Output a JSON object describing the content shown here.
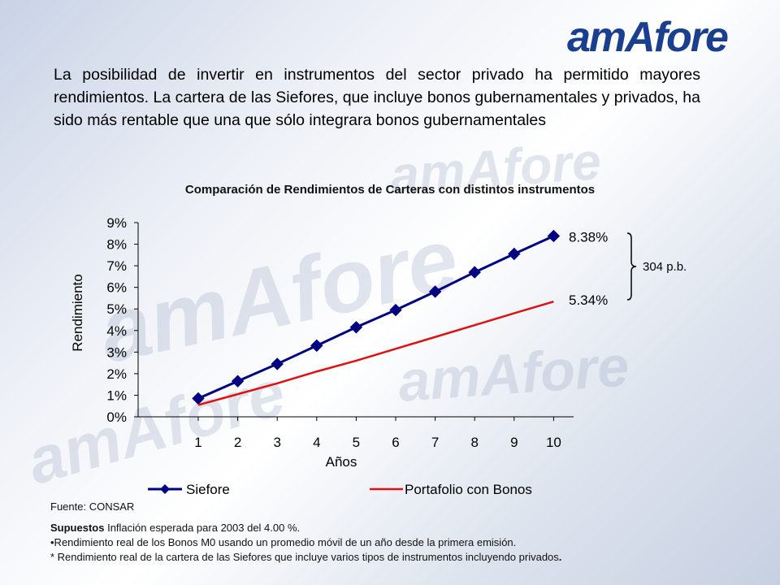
{
  "logo": {
    "text": "amAfore"
  },
  "intro_text": "La posibilidad de invertir en instrumentos del sector privado ha permitido mayores rendimientos. La cartera de las Siefores, que incluye bonos gubernamentales y privados, ha sido más rentable que una que sólo integrara bonos gubernamentales",
  "chart_data": {
    "type": "line",
    "title": "Comparación de Rendimientos de Carteras con distintos instrumentos",
    "xlabel": "Años",
    "ylabel": "Rendimiento",
    "x": [
      1,
      2,
      3,
      4,
      5,
      6,
      7,
      8,
      9,
      10
    ],
    "ylim": [
      0,
      9
    ],
    "yticks": [
      "0%",
      "1%",
      "2%",
      "3%",
      "4%",
      "5%",
      "6%",
      "7%",
      "8%",
      "9%"
    ],
    "series": [
      {
        "name": "Siefore",
        "color": "#000080",
        "marker": "diamond",
        "values": [
          0.85,
          1.65,
          2.45,
          3.3,
          4.15,
          4.95,
          5.8,
          6.7,
          7.55,
          8.38
        ]
      },
      {
        "name": "Portafolio con Bonos",
        "color": "#dd1111",
        "marker": "none",
        "values": [
          0.55,
          1.05,
          1.55,
          2.1,
          2.6,
          3.15,
          3.7,
          4.25,
          4.8,
          5.34
        ]
      }
    ],
    "annotations": {
      "siefore_end": "8.38%",
      "bonos_end": "5.34%",
      "spread": "304 p.b."
    },
    "legend_position": "bottom",
    "grid": false
  },
  "source": "Fuente:  CONSAR",
  "notes": {
    "supuestos_label": "Supuestos",
    "supuestos_text": " Inflación esperada para 2003 del 4.00 %.",
    "line2": "•Rendimiento real de los Bonos M0 usando un promedio móvil de un año desde la primera emisión.",
    "line3": "* Rendimiento real de la cartera  de las Siefores que incluye varios tipos de instrumentos incluyendo privados",
    "line3_end": "."
  }
}
